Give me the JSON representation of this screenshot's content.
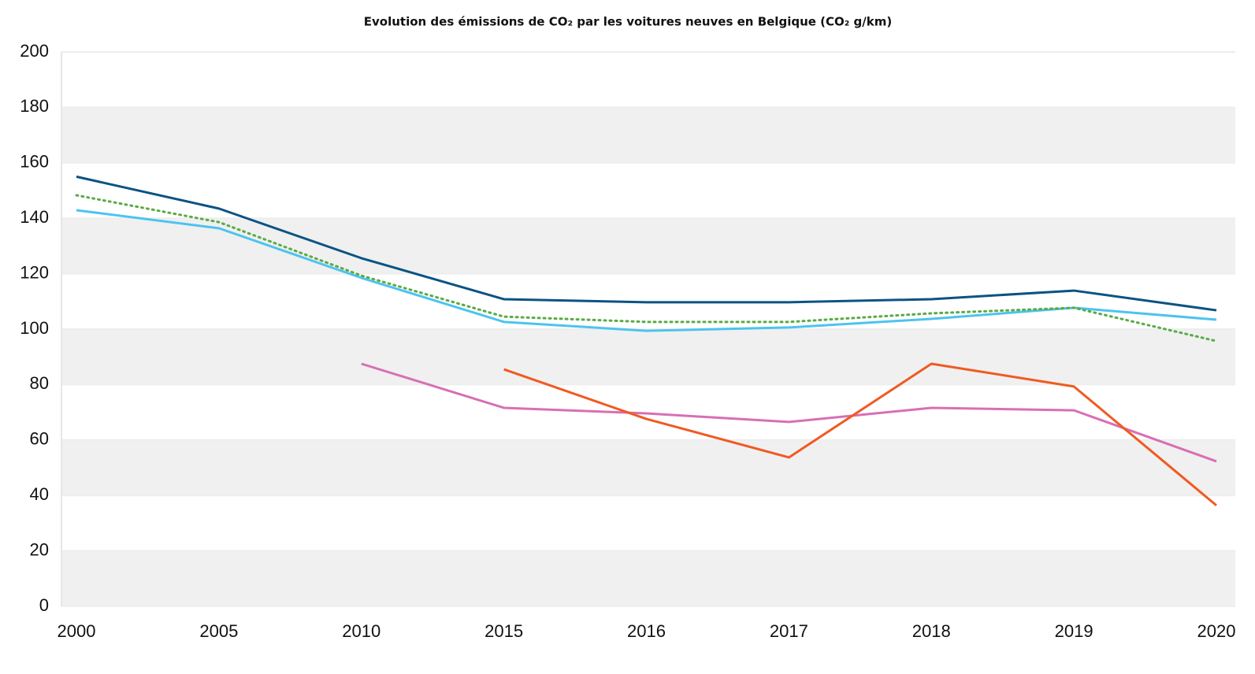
{
  "chart_data": {
    "type": "line",
    "title": "Evolution des émissions de CO₂ par les voitures neuves en Belgique (CO₂ g/km)",
    "categories": [
      "2000",
      "2005",
      "2010",
      "2015",
      "2016",
      "2017",
      "2018",
      "2019",
      "2020"
    ],
    "series": [
      {
        "color": "#0b5384",
        "style": "solid",
        "values": [
          155,
          143.5,
          125.6,
          110.8,
          109.7,
          109.7,
          110.8,
          113.9,
          106.8
        ]
      },
      {
        "color": "#4dc3ef",
        "style": "solid",
        "values": [
          142.9,
          136.4,
          118.5,
          102.6,
          99.4,
          100.6,
          103.7,
          107.7,
          103.4
        ]
      },
      {
        "color": "#5aab44",
        "style": "dotted",
        "values": [
          148.3,
          138.6,
          119.3,
          104.5,
          102.6,
          102.6,
          105.7,
          107.7,
          95.7
        ]
      },
      {
        "color": "#d86fb5",
        "style": "solid",
        "values": [
          null,
          null,
          87.5,
          71.6,
          69.6,
          66.5,
          71.6,
          70.7,
          52.3
        ]
      },
      {
        "color": "#f05a22",
        "style": "solid",
        "values": [
          null,
          null,
          null,
          85.5,
          67.6,
          53.7,
          87.5,
          79.3,
          36.4
        ]
      }
    ],
    "ylim": [
      0,
      200
    ],
    "yticks": [
      0,
      20,
      40,
      60,
      80,
      100,
      120,
      140,
      160,
      180,
      200
    ],
    "grid": "bands"
  }
}
